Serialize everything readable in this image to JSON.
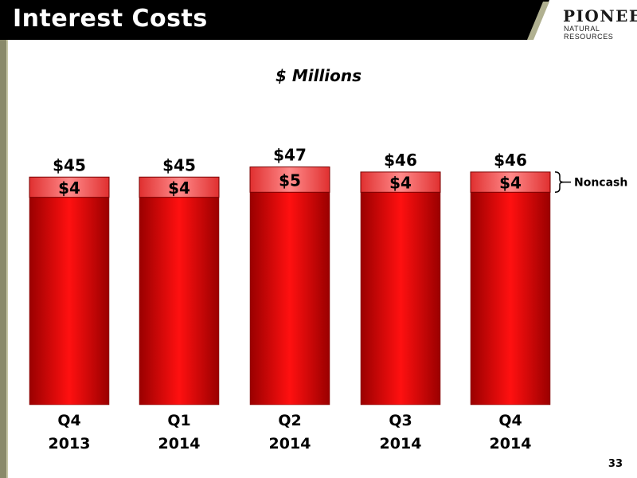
{
  "header": {
    "title": "Interest Costs",
    "logo_main": "PIONEER",
    "logo_sub": "NATURAL RESOURCES"
  },
  "subtitle": "$ Millions",
  "page_number": "33",
  "colors": {
    "bar_main": "#e00000",
    "bar_noncash": "#ff5050",
    "header_bg": "#000000",
    "accent_olive": "#8a8a6a"
  },
  "chart_data": {
    "type": "bar",
    "stacked": true,
    "categories": [
      {
        "line1": "Q4",
        "line2": "2013"
      },
      {
        "line1": "Q1",
        "line2": "2014"
      },
      {
        "line1": "Q2",
        "line2": "2014"
      },
      {
        "line1": "Q3",
        "line2": "2014"
      },
      {
        "line1": "Q4",
        "line2": "2014"
      }
    ],
    "totals": [
      45,
      45,
      47,
      46,
      46
    ],
    "total_labels": [
      "$45",
      "$45",
      "$47",
      "$46",
      "$46"
    ],
    "series": [
      {
        "values": [
          41,
          41,
          42,
          42,
          42
        ]
      },
      {
        "name": "Noncash",
        "values": [
          4,
          4,
          5,
          4,
          4
        ],
        "labels": [
          "$4",
          "$4",
          "$5",
          "$4",
          "$4"
        ]
      }
    ],
    "annotation": "Noncash",
    "grid": false,
    "legend": "none"
  }
}
